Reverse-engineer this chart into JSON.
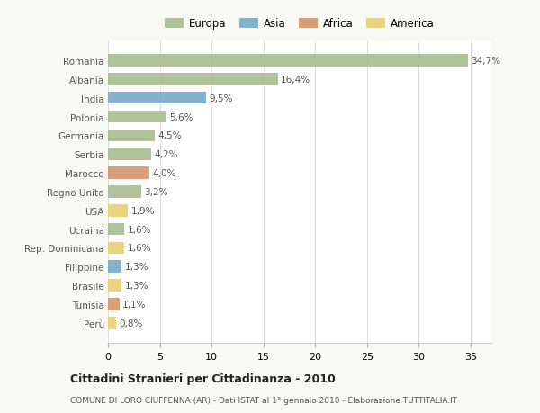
{
  "categories": [
    "Romania",
    "Albania",
    "India",
    "Polonia",
    "Germania",
    "Serbia",
    "Marocco",
    "Regno Unito",
    "USA",
    "Ucraina",
    "Rep. Dominicana",
    "Filippine",
    "Brasile",
    "Tunisia",
    "Perù"
  ],
  "values": [
    34.7,
    16.4,
    9.5,
    5.6,
    4.5,
    4.2,
    4.0,
    3.2,
    1.9,
    1.6,
    1.6,
    1.3,
    1.3,
    1.1,
    0.8
  ],
  "labels": [
    "34,7%",
    "16,4%",
    "9,5%",
    "5,6%",
    "4,5%",
    "4,2%",
    "4,0%",
    "3,2%",
    "1,9%",
    "1,6%",
    "1,6%",
    "1,3%",
    "1,3%",
    "1,1%",
    "0,8%"
  ],
  "colors": [
    "#a8bc8f",
    "#a8bc8f",
    "#7aaac8",
    "#a8bc8f",
    "#a8bc8f",
    "#a8bc8f",
    "#d4956a",
    "#a8bc8f",
    "#e8d070",
    "#a8bc8f",
    "#e8d070",
    "#7aaac8",
    "#e8d070",
    "#d4956a",
    "#e8d070"
  ],
  "legend_labels": [
    "Europa",
    "Asia",
    "Africa",
    "America"
  ],
  "legend_colors": [
    "#a8bc8f",
    "#7aaac8",
    "#d4956a",
    "#e8d070"
  ],
  "title": "Cittadini Stranieri per Cittadinanza - 2010",
  "subtitle": "COMUNE DI LORO CIUFFENNA (AR) - Dati ISTAT al 1° gennaio 2010 - Elaborazione TUTTITALIA.IT",
  "xlim": [
    0,
    37
  ],
  "xticks": [
    0,
    5,
    10,
    15,
    20,
    25,
    30,
    35
  ],
  "background_color": "#f8f8f4",
  "plot_bg_color": "#ffffff"
}
